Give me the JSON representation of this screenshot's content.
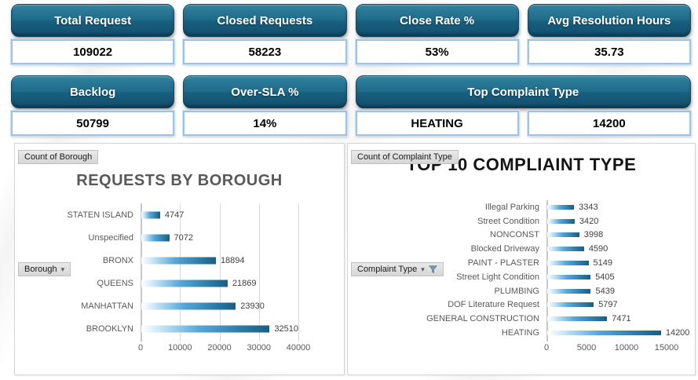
{
  "kpis": {
    "row1": [
      {
        "label": "Total Request",
        "value": "109022"
      },
      {
        "label": "Closed Requests",
        "value": "58223"
      },
      {
        "label": "Close Rate %",
        "value": "53%"
      },
      {
        "label": "Avg Resolution Hours",
        "value": "35.73"
      }
    ],
    "row2": [
      {
        "label": "Backlog",
        "value": "50799"
      },
      {
        "label": "Over-SLA %",
        "value": "14%"
      }
    ],
    "top_complaint": {
      "label": "Top Complaint Type",
      "type_value": "HEATING",
      "count_value": "14200"
    }
  },
  "chart_data": [
    {
      "type": "bar",
      "orientation": "horizontal",
      "title": "REQUESTS BY BOROUGH",
      "field_button_label": "Count of Borough",
      "filter_button_label": "Borough",
      "filter_active": false,
      "categories": [
        "STATEN ISLAND",
        "Unspecified",
        "BRONX",
        "QUEENS",
        "MANHATTAN",
        "BROOKLYN"
      ],
      "values": [
        4747,
        7072,
        18894,
        21869,
        23930,
        32510
      ],
      "xlim": [
        0,
        40000
      ],
      "xticks": [
        0,
        10000,
        20000,
        30000,
        40000
      ],
      "grid": true,
      "data_labels": true,
      "legend": "none"
    },
    {
      "type": "bar",
      "orientation": "horizontal",
      "title": "TOP 10 COMPLIAINT TYPE",
      "field_button_label": "Count of Complaint Type",
      "filter_button_label": "Complaint Type",
      "filter_active": true,
      "categories": [
        "Illegal Parking",
        "Street Condition",
        "NONCONST",
        "Blocked Driveway",
        "PAINT - PLASTER",
        "Street Light Condition",
        "PLUMBING",
        "DOF Literature Request",
        "GENERAL CONSTRUCTION",
        "HEATING"
      ],
      "values": [
        3343,
        3420,
        3998,
        4590,
        5149,
        5405,
        5439,
        5797,
        7471,
        14200
      ],
      "xlim": [
        0,
        15000
      ],
      "xticks": [
        0,
        5000,
        10000,
        15000
      ],
      "grid": false,
      "data_labels": true,
      "legend": "none"
    }
  ],
  "colors": {
    "kpi_header_teal_top": "#35859F",
    "kpi_header_teal_bottom": "#0F4762",
    "kpi_value_border": "#9CC2E5",
    "bar_gradient_start": "#FFFFFF",
    "bar_gradient_mid": "#56A7D9",
    "bar_gradient_end": "#195E84",
    "gridline": "#D9D9D9",
    "left_title_gray": "#595959",
    "right_title_black": "#141414"
  }
}
